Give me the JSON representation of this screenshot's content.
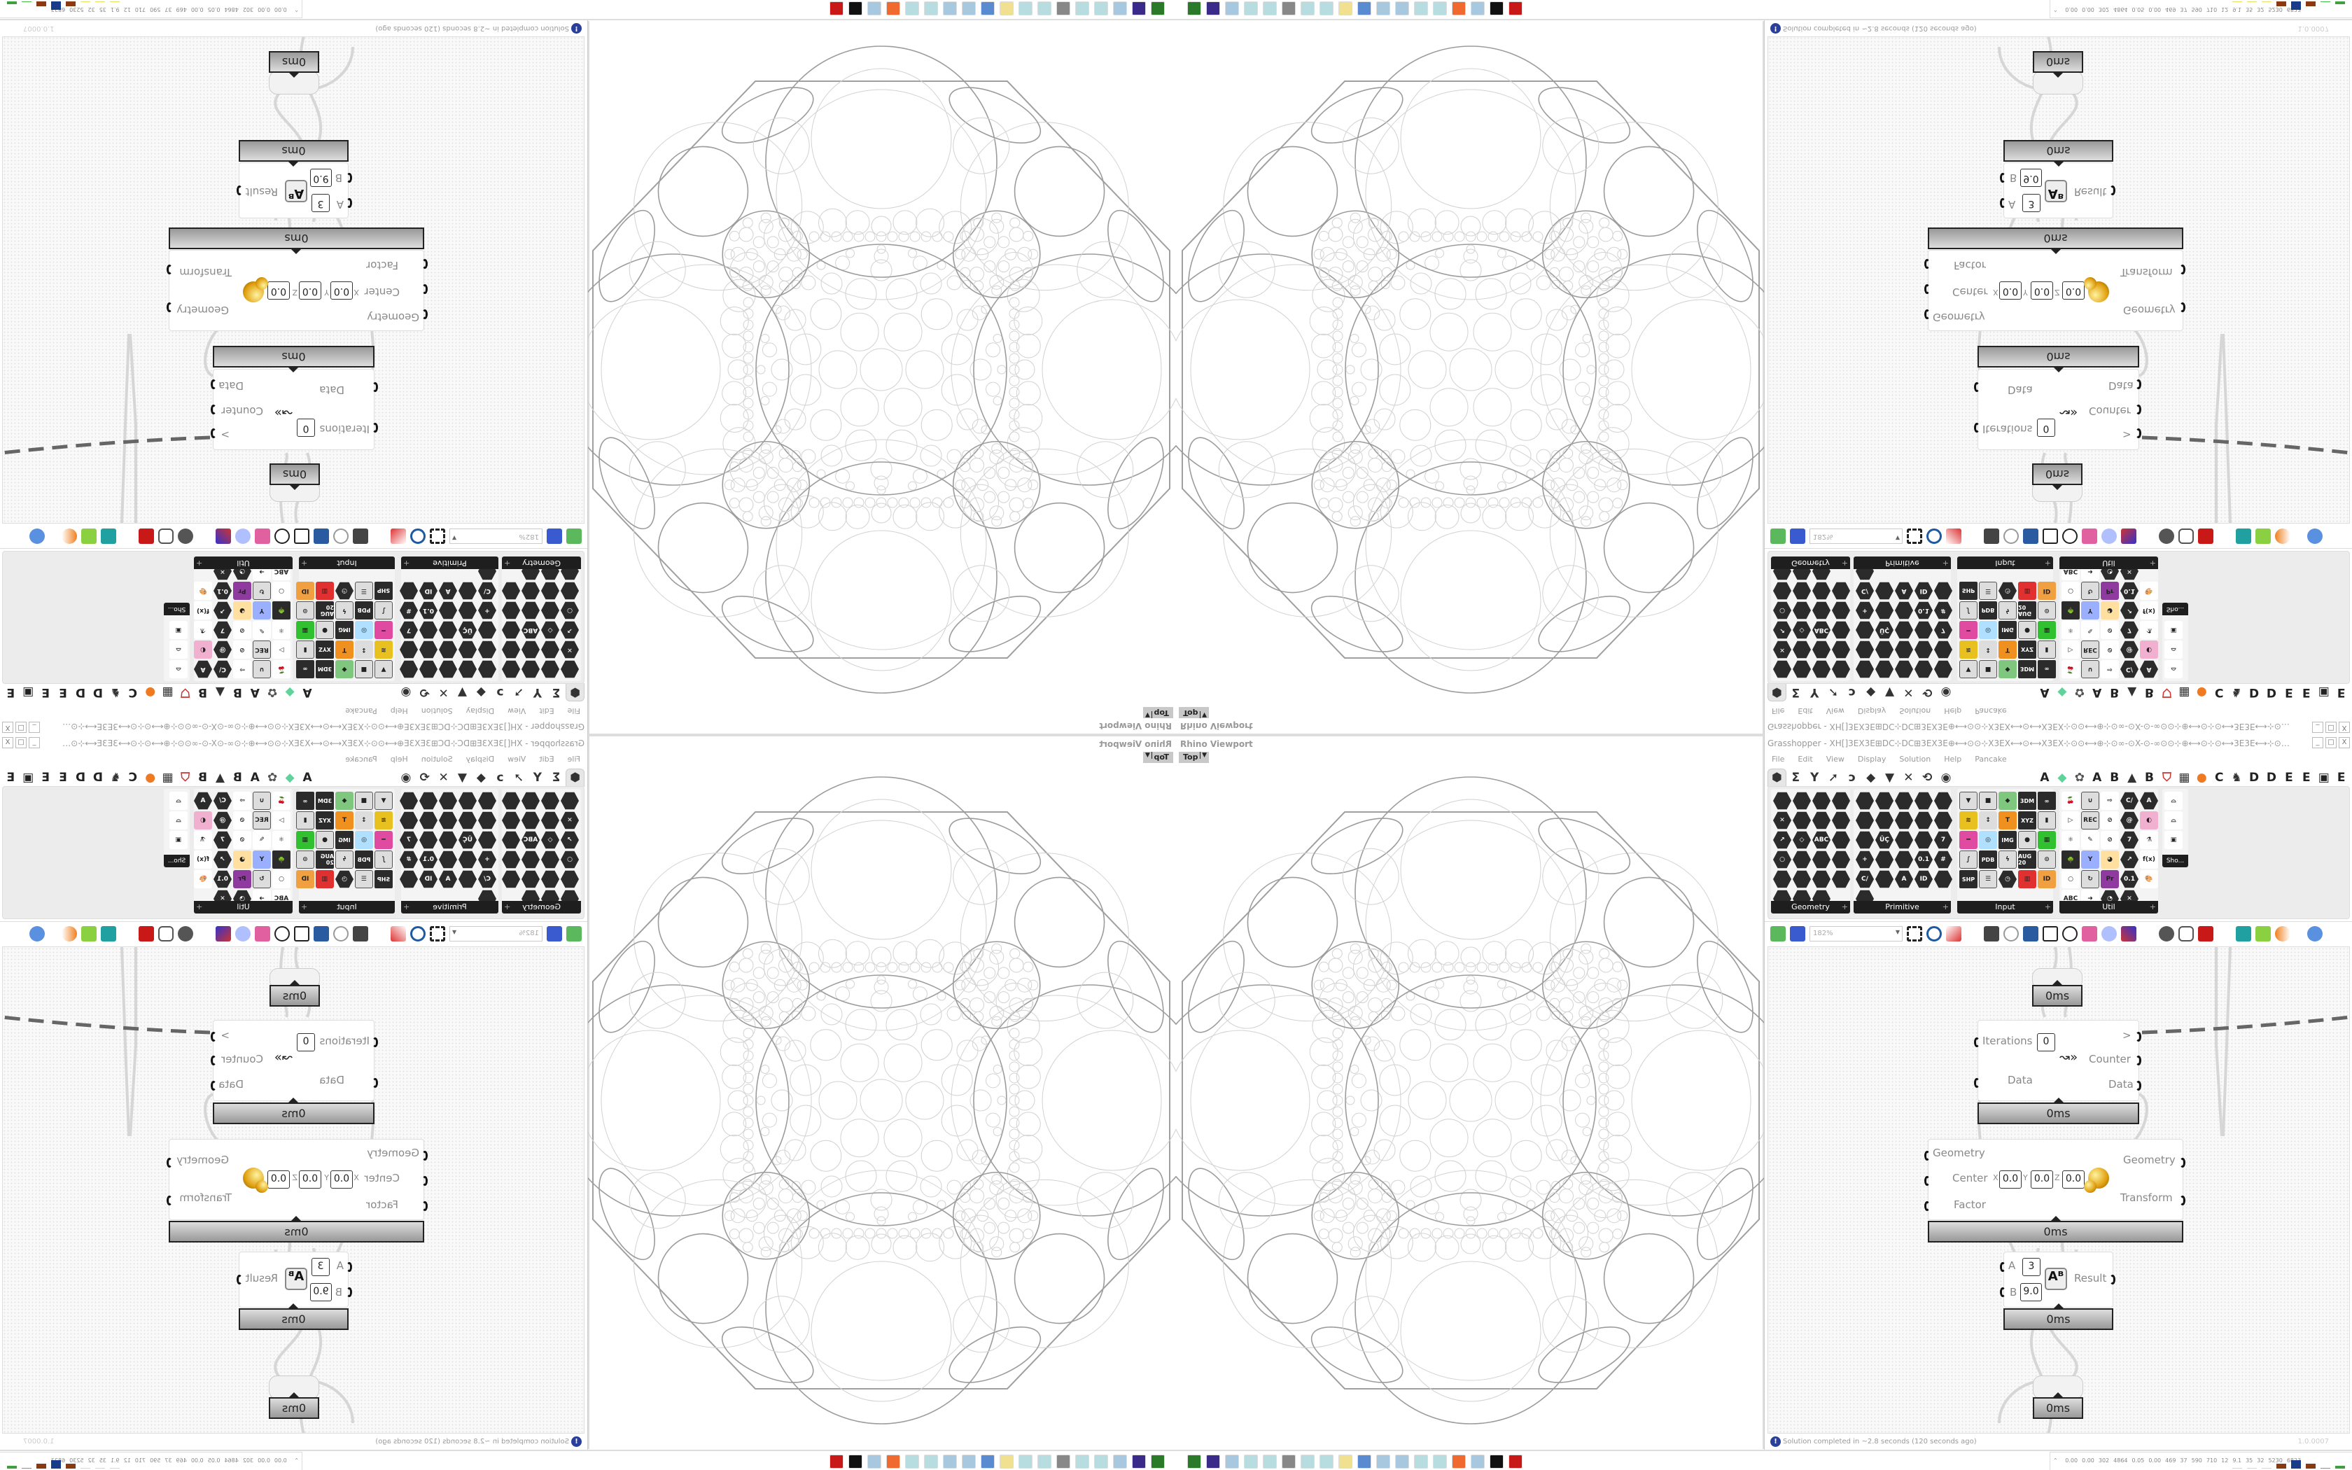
{
  "viewport": {
    "title": "Rhino Viewport",
    "view": "Top"
  },
  "grasshopper": {
    "title": "Grasshopper - XH[]3EX3E⊞DC⊹DC⊞3EX3E⊕⟷⊙⊙⊹X3EX⟷⊙⟷X3EX⊹⊙⊙⟷⊕⊹⊙∞-⊙X-⊙-∞⊙⊙⊹⊕⟷⊙⊹⊙⟷3E3E⟷⊹⊙⟷⊕⊹⊙∞-⊙X-⊙-∞⊙⊙⊹⊕⟷⊙⊙⊹X3EX⟷⊙...",
    "window_buttons": [
      "_",
      "□",
      "X"
    ],
    "menu": [
      "File",
      "Edit",
      "View",
      "Display",
      "Solution",
      "Help",
      "Pancake"
    ],
    "tabs": [
      {
        "icon": "params-hex-icon",
        "glyph": "⬢"
      },
      {
        "icon": "maths-sigma-icon",
        "glyph": "Σ"
      },
      {
        "icon": "sets-icon",
        "glyph": "Y"
      },
      {
        "icon": "vector-icon",
        "glyph": "➚"
      },
      {
        "icon": "curve-icon",
        "glyph": "ↄ"
      },
      {
        "icon": "surface-icon",
        "glyph": "◆"
      },
      {
        "icon": "mesh-icon",
        "glyph": "▼"
      },
      {
        "icon": "intersect-icon",
        "glyph": "✕"
      },
      {
        "icon": "transform-icon",
        "glyph": "⟲"
      },
      {
        "icon": "display-eye-icon",
        "glyph": "◉"
      }
    ],
    "plugin_tabs": [
      {
        "icon": "plugin-a-icon",
        "glyph": "A",
        "color": "#222"
      },
      {
        "icon": "green-gem-icon",
        "glyph": "◆",
        "color": "#5fd39a"
      },
      {
        "icon": "brain-icon",
        "glyph": "✿",
        "color": "#555"
      },
      {
        "icon": "plugin-a2-icon",
        "glyph": "A",
        "color": "#222"
      },
      {
        "icon": "plugin-b-icon",
        "glyph": "B",
        "color": "#222"
      },
      {
        "icon": "mountain-icon",
        "glyph": "▲",
        "color": "#333"
      },
      {
        "icon": "plugin-b2-icon",
        "glyph": "B",
        "color": "#222"
      },
      {
        "icon": "shield-icon",
        "glyph": "⛉",
        "color": "#c33"
      },
      {
        "icon": "grid-icon",
        "glyph": "▦",
        "color": "#333"
      },
      {
        "icon": "orange-circle-icon",
        "glyph": "●",
        "color": "#f07a22"
      },
      {
        "icon": "plugin-c-icon",
        "glyph": "C",
        "color": "#222"
      },
      {
        "icon": "rooster-icon",
        "glyph": "♞",
        "color": "#333"
      },
      {
        "icon": "plugin-d-icon",
        "glyph": "D",
        "color": "#222"
      },
      {
        "icon": "plugin-d2-icon",
        "glyph": "D",
        "color": "#222"
      },
      {
        "icon": "plugin-e-icon",
        "glyph": "E",
        "color": "#222"
      },
      {
        "icon": "plugin-e2-icon",
        "glyph": "E",
        "color": "#222"
      },
      {
        "icon": "dotted-square-icon",
        "glyph": "▣",
        "color": "#222"
      },
      {
        "icon": "plugin-e3-icon",
        "glyph": "E",
        "color": "#222"
      }
    ],
    "panels": [
      {
        "label": "Geometry",
        "icons": [
          {
            "k": "hex"
          },
          {
            "k": "hex"
          },
          {
            "k": "hex"
          },
          {
            "k": "hex"
          },
          {
            "k": "hex",
            "t": "✕"
          },
          {
            "k": "hex"
          },
          {
            "k": "hex"
          },
          {
            "k": "hex"
          },
          {
            "k": "hex",
            "t": "↗"
          },
          {
            "k": "hex",
            "t": "◇"
          },
          {
            "k": "hex",
            "t": "ABC"
          },
          {
            "k": "hex"
          },
          {
            "k": "hex",
            "t": "○"
          },
          {
            "k": "hex"
          },
          {
            "k": "hex"
          },
          {
            "k": "hex"
          },
          {
            "k": "hex"
          },
          {
            "k": "hex"
          },
          {
            "k": "hex"
          },
          {
            "k": "hex"
          },
          {
            "k": "hex"
          },
          {
            "k": "hex"
          },
          {
            "k": "hex"
          }
        ]
      },
      {
        "label": "Primitive",
        "icons": [
          {
            "k": "hex"
          },
          {
            "k": "hex"
          },
          {
            "k": "hex"
          },
          {
            "k": "hex"
          },
          {
            "k": "hex"
          },
          {
            "k": "hex"
          },
          {
            "k": "hex"
          },
          {
            "k": "hex"
          },
          {
            "k": "hex"
          },
          {
            "k": "hex"
          },
          {
            "k": "hex"
          },
          {
            "k": "hex",
            "t": "ÜÇ"
          },
          {
            "k": "hex"
          },
          {
            "k": "hex"
          },
          {
            "k": "hex",
            "t": "7"
          },
          {
            "k": "hex",
            "t": "+"
          },
          {
            "k": "hex"
          },
          {
            "k": "hex"
          },
          {
            "k": "hex",
            "t": "0.1"
          },
          {
            "k": "hex",
            "t": "#"
          },
          {
            "k": "hex",
            "t": "C/"
          },
          {
            "k": "hex"
          },
          {
            "k": "hex",
            "t": "A"
          },
          {
            "k": "hex",
            "t": "ID"
          },
          {
            "k": "hex"
          },
          {
            "k": "hex"
          }
        ]
      },
      {
        "label": "Input",
        "icons": [
          {
            "k": "btn",
            "t": "▼"
          },
          {
            "k": "btn",
            "t": "■"
          },
          {
            "k": "col",
            "c": "#7fc77f",
            "t": "◆"
          },
          {
            "k": "chip",
            "t": "3DM"
          },
          {
            "k": "chip",
            "t": "∞"
          },
          {
            "k": "col",
            "c": "#e8c020",
            "t": "≋"
          },
          {
            "k": "col",
            "c": "#ddd",
            "t": "↕"
          },
          {
            "k": "col",
            "c": "#f0901e",
            "t": "T"
          },
          {
            "k": "chip",
            "t": "XYZ"
          },
          {
            "k": "btn",
            "t": "▮"
          },
          {
            "k": "col",
            "c": "#e04aa0",
            "t": "━"
          },
          {
            "k": "col",
            "c": "#b0e0ff",
            "t": "◎"
          },
          {
            "k": "chip",
            "t": "IMG"
          },
          {
            "k": "btn",
            "t": "●"
          },
          {
            "k": "col",
            "c": "#30c030",
            "t": "▦"
          },
          {
            "k": "btn",
            "t": "∫"
          },
          {
            "k": "chip",
            "t": "PDB"
          },
          {
            "k": "btn",
            "t": "ϟ"
          },
          {
            "k": "chip",
            "t": "AUG 20"
          },
          {
            "k": "btn",
            "t": "⊙"
          },
          {
            "k": "chip",
            "t": "SHP"
          },
          {
            "k": "btn",
            "t": "☰"
          },
          {
            "k": "hex",
            "t": "◷"
          },
          {
            "k": "col",
            "c": "#e03030",
            "t": "▥"
          },
          {
            "k": "col",
            "c": "#f0a040",
            "t": "ID"
          }
        ]
      },
      {
        "label": "Util",
        "icons": [
          {
            "k": "col",
            "c": "#fff",
            "t": "🍒"
          },
          {
            "k": "btn",
            "t": "∪"
          },
          {
            "k": "col",
            "c": "#fff",
            "t": "⇨"
          },
          {
            "k": "hex",
            "t": "C/"
          },
          {
            "k": "hex",
            "t": "A"
          },
          {
            "k": "col",
            "c": "#fff",
            "t": "▷"
          },
          {
            "k": "btn",
            "t": "REC"
          },
          {
            "k": "col",
            "c": "#fff",
            "t": "⊘"
          },
          {
            "k": "hex",
            "t": "@"
          },
          {
            "k": "col",
            "c": "#f2b0d0",
            "t": "◐"
          },
          {
            "k": "col",
            "c": "#fff",
            "t": "⚛"
          },
          {
            "k": "col",
            "c": "#fff",
            "t": "✎"
          },
          {
            "k": "col",
            "c": "#fff",
            "t": "⊘"
          },
          {
            "k": "hex",
            "t": "7"
          },
          {
            "k": "col",
            "c": "#fff",
            "t": "⚗"
          },
          {
            "k": "chip",
            "t": "🌳"
          },
          {
            "k": "col",
            "c": "#9ab0ff",
            "t": "Y"
          },
          {
            "k": "col",
            "c": "#ffe0a0",
            "t": "◕"
          },
          {
            "k": "hex",
            "t": "↗"
          },
          {
            "k": "col",
            "c": "#fff",
            "t": "f(x)"
          },
          {
            "k": "col",
            "c": "#fff",
            "t": "○"
          },
          {
            "k": "btn",
            "t": "↻"
          },
          {
            "k": "col",
            "c": "#8e3a9e",
            "t": "Pr"
          },
          {
            "k": "hex",
            "t": "0.1"
          },
          {
            "k": "col",
            "c": "#fff",
            "t": "🎨"
          },
          {
            "k": "col",
            "c": "#fff",
            "t": "ABC"
          },
          {
            "k": "col",
            "c": "#fff",
            "t": "➜"
          },
          {
            "k": "hex",
            "t": "◔"
          },
          {
            "k": "hex",
            "t": "✕"
          }
        ]
      },
      {
        "label": "Sho...",
        "icons": [
          {
            "k": "col",
            "c": "#fff",
            "t": "⌓"
          },
          {
            "k": "col",
            "c": "#fff",
            "t": "⌓"
          },
          {
            "k": "col",
            "c": "#fff",
            "t": "▣"
          }
        ]
      }
    ],
    "toolbar": {
      "zoom": "182%"
    },
    "canvas": {
      "top_timer": "0ms",
      "loop": {
        "inputs": [
          "Iterations",
          "Data"
        ],
        "iterations_value": "0",
        "outputs": [
          ">",
          "Counter",
          "Data"
        ],
        "timer": "0ms"
      },
      "scale": {
        "inputs": [
          "Geometry",
          "Center",
          "Factor"
        ],
        "x_label": "X",
        "y_label": "Y",
        "z_label": "Z",
        "x": "0.0",
        "y": "0.0",
        "z": "0.0",
        "outputs": [
          "Geometry",
          "Transform"
        ],
        "timer": "0ms"
      },
      "power": {
        "a_label": "A",
        "b_label": "B",
        "a": "3",
        "b": "9.0",
        "output": "Result",
        "timer": "0ms"
      },
      "bottom_timer": "0ms"
    },
    "status": {
      "message": "Solution completed in ~2.8 seconds (120 seconds ago)",
      "version": "1.0.0007"
    }
  },
  "taskbar": {
    "apps": [
      {
        "icon": "green-app-icon",
        "color": "#2a7a2a"
      },
      {
        "icon": "floppy-icon",
        "color": "#3a2a8a"
      },
      {
        "icon": "notepad-icon",
        "color": "#a8c8e0"
      },
      {
        "icon": "notepad-icon",
        "color": "#b8dde0"
      },
      {
        "icon": "notepad-icon",
        "color": "#b8dde0"
      },
      {
        "icon": "monitor-icon",
        "color": "#888"
      },
      {
        "icon": "notepad-icon",
        "color": "#b8dde0"
      },
      {
        "icon": "notepad-icon",
        "color": "#b8dde0"
      },
      {
        "icon": "folder-icon",
        "color": "#f0e090"
      },
      {
        "icon": "calculator-icon",
        "color": "#5a8ad0"
      },
      {
        "icon": "notepad-icon",
        "color": "#a8c8e0"
      },
      {
        "icon": "notepad-icon",
        "color": "#a8c8e0"
      },
      {
        "icon": "notepad-icon",
        "color": "#b8dde0"
      },
      {
        "icon": "notepad-icon",
        "color": "#b8dde0"
      },
      {
        "icon": "firefox-icon",
        "color": "#f06a30"
      },
      {
        "icon": "calculator-icon",
        "color": "#a8c8e0"
      },
      {
        "icon": "inkscape-icon",
        "color": "#111"
      },
      {
        "icon": "red-app-icon",
        "color": "#c81818"
      }
    ],
    "stats": [
      "0.00",
      "0.00",
      "302",
      "4864",
      "0.05",
      "0.00",
      "469",
      "37",
      "590",
      "710",
      "12",
      "9.1",
      "35",
      "32",
      "5230",
      "6823"
    ],
    "stat_bars": [
      {
        "color": "#e8e060",
        "level": 0.1
      },
      {
        "color": "#e8e060",
        "level": 0.1
      },
      {
        "color": "#e8e060",
        "level": 0.1
      },
      {
        "color": "#8a3a10",
        "level": 0.6
      },
      {
        "color": "#1a3a8a",
        "level": 1.0
      },
      {
        "color": "#8a3a10",
        "level": 0.6
      },
      {
        "color": "#40c040",
        "level": 0.1
      },
      {
        "color": "#40a040",
        "level": 0.3
      }
    ]
  }
}
